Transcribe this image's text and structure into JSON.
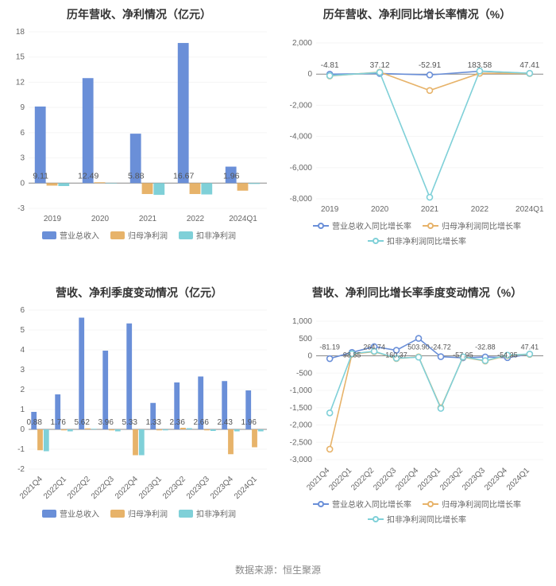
{
  "footer_text": "数据来源：恒生聚源",
  "footer_fontsize": 12,
  "colors": {
    "series_blue": "#6a8fd8",
    "series_orange": "#e7b36a",
    "series_cyan": "#7fd0d8",
    "axis_line": "#888888",
    "grid": "#f5f5f5",
    "text": "#333333",
    "tick_text": "#666666",
    "value_label": "#555555",
    "background": "#ffffff"
  },
  "panels": {
    "annual_bar": {
      "title": "历年营收、净利情况（亿元）",
      "title_fontsize": 14,
      "type": "bar",
      "categories": [
        "2019",
        "2020",
        "2021",
        "2022",
        "2024Q1"
      ],
      "series": [
        {
          "name": "营业总收入",
          "color_key": "series_blue",
          "values": [
            9.11,
            12.49,
            5.88,
            16.67,
            1.96
          ],
          "show_labels": true
        },
        {
          "name": "归母净利润",
          "color_key": "series_orange",
          "values": [
            -0.3,
            0.1,
            -1.3,
            -1.3,
            -0.9
          ],
          "show_labels": false
        },
        {
          "name": "扣非净利润",
          "color_key": "series_cyan",
          "values": [
            -0.35,
            -0.05,
            -1.4,
            -1.35,
            -0.1
          ],
          "show_labels": false
        }
      ],
      "y": {
        "min": -3,
        "max": 18,
        "step": 3
      },
      "tick_fontsize": 10,
      "value_label_fontsize": 10.5,
      "legend_fontsize": 10,
      "bar_group_width": 0.74,
      "legend_type": "rect"
    },
    "annual_line": {
      "title": "历年营收、净利同比增长率情况（%）",
      "title_fontsize": 14,
      "type": "line",
      "categories": [
        "2019",
        "2020",
        "2021",
        "2022",
        "2024Q1"
      ],
      "series": [
        {
          "name": "营业总收入同比增长率",
          "color_key": "series_blue",
          "values": [
            -4.81,
            37.12,
            -52.91,
            183.58,
            47.41
          ]
        },
        {
          "name": "归母净利润同比增长率",
          "color_key": "series_orange",
          "values": [
            -120,
            130,
            -1050,
            50,
            40
          ]
        },
        {
          "name": "扣非净利润同比增长率",
          "color_key": "series_cyan",
          "values": [
            -100,
            110,
            -7900,
            200,
            50
          ]
        }
      ],
      "top_labels": [
        {
          "x": 0,
          "text": "-4.81"
        },
        {
          "x": 1,
          "text": "37.12"
        },
        {
          "x": 2,
          "text": "-52.91"
        },
        {
          "x": 3,
          "text": "183.58"
        },
        {
          "x": 4,
          "text": "47.41"
        }
      ],
      "y": {
        "min": -8000,
        "max": 2000,
        "step": 2000
      },
      "tick_fontsize": 10,
      "label_fontsize": 10,
      "legend_fontsize": 10,
      "marker_radius": 3.5,
      "line_width": 1.6,
      "legend_type": "line"
    },
    "quarter_bar": {
      "title": "营收、净利季度变动情况（亿元）",
      "title_fontsize": 14,
      "type": "bar",
      "categories": [
        "2021Q4",
        "2022Q1",
        "2022Q2",
        "2022Q3",
        "2022Q4",
        "2023Q1",
        "2023Q2",
        "2023Q3",
        "2023Q4",
        "2024Q1"
      ],
      "rotate_xticks": -45,
      "series": [
        {
          "name": "营业总收入",
          "color_key": "series_blue",
          "values": [
            0.88,
            1.76,
            5.62,
            3.96,
            5.33,
            1.33,
            2.36,
            2.66,
            2.43,
            1.96
          ],
          "show_labels": true
        },
        {
          "name": "归母净利润",
          "color_key": "series_orange",
          "values": [
            -1.05,
            -0.05,
            0.05,
            -0.05,
            -1.3,
            -0.05,
            0.08,
            -0.05,
            -1.25,
            -0.9
          ],
          "show_labels": false
        },
        {
          "name": "扣非净利润",
          "color_key": "series_cyan",
          "values": [
            -1.1,
            -0.1,
            0.03,
            -0.1,
            -1.3,
            -0.05,
            0.06,
            -0.08,
            -0.1,
            -0.1
          ],
          "show_labels": false
        }
      ],
      "y": {
        "min": -2,
        "max": 6,
        "step": 1
      },
      "tick_fontsize": 10,
      "value_label_fontsize": 10,
      "legend_fontsize": 10,
      "bar_group_width": 0.78,
      "legend_type": "rect"
    },
    "quarter_line": {
      "title": "营收、净利同比增长率季度变动情况（%）",
      "title_fontsize": 14,
      "type": "line",
      "categories": [
        "2021Q4",
        "2022Q1",
        "2022Q2",
        "2022Q3",
        "2022Q4",
        "2023Q1",
        "2023Q2",
        "2023Q3",
        "2023Q4",
        "2024Q1"
      ],
      "rotate_xticks": -45,
      "series": [
        {
          "name": "营业总收入同比增长率",
          "color_key": "series_blue",
          "values": [
            -81.19,
            98.85,
            264.74,
            160.37,
            503.9,
            -24.72,
            -57.95,
            -32.88,
            -54.35,
            47.41
          ]
        },
        {
          "name": "归母净利润同比增长率",
          "color_key": "series_orange",
          "values": [
            -2700,
            50,
            120,
            -80,
            -30,
            -1500,
            -40,
            -150,
            10,
            40
          ]
        },
        {
          "name": "扣非净利润同比增长率",
          "color_key": "series_cyan",
          "values": [
            -1650,
            60,
            130,
            -70,
            -40,
            -1520,
            -30,
            -140,
            20,
            50
          ]
        }
      ],
      "top_labels": [
        {
          "x": 0,
          "text": "-81.19"
        },
        {
          "x": 1,
          "text": "98.85",
          "dy": 10
        },
        {
          "x": 2,
          "text": "264.74"
        },
        {
          "x": 3,
          "text": "160.37",
          "dy": 10
        },
        {
          "x": 4,
          "text": "503.90"
        },
        {
          "x": 5,
          "text": "-24.72"
        },
        {
          "x": 6,
          "text": "-57.95",
          "dy": 10
        },
        {
          "x": 7,
          "text": "-32.88"
        },
        {
          "x": 8,
          "text": "-54.35",
          "dy": 10
        },
        {
          "x": 9,
          "text": "47.41"
        }
      ],
      "y": {
        "min": -3000,
        "max": 1000,
        "step": 500
      },
      "tick_fontsize": 10,
      "label_fontsize": 9,
      "legend_fontsize": 10,
      "marker_radius": 3.5,
      "line_width": 1.6,
      "legend_type": "line"
    }
  }
}
